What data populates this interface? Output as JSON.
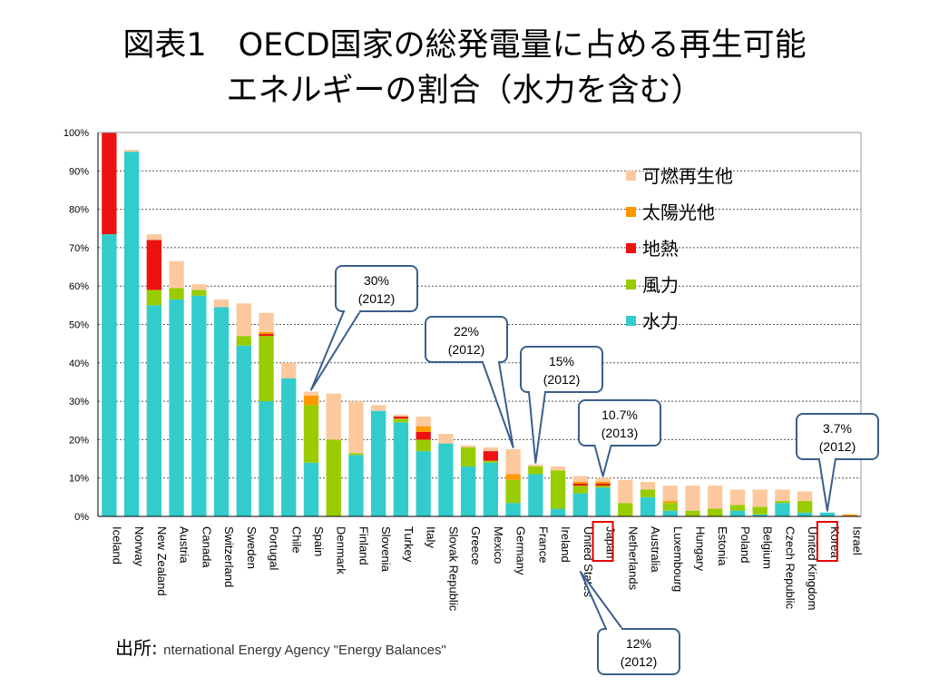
{
  "title_line1": "図表1　OECD国家の総発電量に占める再生可能",
  "title_line2": "エネルギーの割合（水力を含む）",
  "source_label": "出所:",
  "source_text": "nternational Energy Agency \"Energy Balances\"",
  "chart_data": {
    "type": "bar",
    "stacked": true,
    "ylim": [
      0,
      100
    ],
    "yticks": [
      "0%",
      "10%",
      "20%",
      "30%",
      "40%",
      "50%",
      "60%",
      "70%",
      "80%",
      "90%",
      "100%"
    ],
    "grid": true,
    "legend_position": "top-right",
    "categories": [
      "Iceland",
      "Norway",
      "New Zealand",
      "Austria",
      "Canada",
      "Switzerland",
      "Sweden",
      "Portugal",
      "Chile",
      "Spain",
      "Denmark",
      "Finland",
      "Slovenia",
      "Turkey",
      "Italy",
      "Slovak Republic",
      "Greece",
      "Mexico",
      "Germany",
      "France",
      "Ireland",
      "United States",
      "Japan",
      "Netherlands",
      "Australia",
      "Luxembourg",
      "Hungary",
      "Estonia",
      "Poland",
      "Belgium",
      "Czech Republic",
      "United Kingdom",
      "Korea",
      "Israel"
    ],
    "highlighted": [
      "Japan",
      "Korea"
    ],
    "series": [
      {
        "name": "水力",
        "color": "#33cccc",
        "values": [
          73.5,
          95,
          55,
          56.5,
          57.5,
          54.5,
          44.5,
          30,
          36,
          14,
          0,
          16,
          27.5,
          24.5,
          17,
          19,
          13,
          14,
          3.5,
          11,
          2,
          6,
          7.5,
          0,
          5,
          1.5,
          0,
          0,
          1.5,
          0.5,
          3.5,
          1,
          1,
          0
        ]
      },
      {
        "name": "風力",
        "color": "#99cc00",
        "values": [
          0,
          0,
          4,
          3,
          1.5,
          0,
          2.5,
          17,
          0,
          15,
          20,
          0.5,
          0,
          1,
          3,
          0,
          5,
          0.5,
          6,
          2,
          10,
          2,
          0.5,
          3.5,
          2,
          2,
          1.5,
          2,
          1.5,
          2,
          0.5,
          3,
          0,
          0
        ]
      },
      {
        "name": "地熱",
        "color": "#ee1111",
        "values": [
          26.5,
          0,
          13,
          0,
          0,
          0,
          0,
          0.5,
          0,
          0,
          0,
          0,
          0,
          0.5,
          2,
          0,
          0,
          2.5,
          0,
          0,
          0,
          0.5,
          0.5,
          0,
          0,
          0,
          0,
          0,
          0,
          0,
          0,
          0,
          0,
          0
        ]
      },
      {
        "name": "太陽光他",
        "color": "#ff9900",
        "values": [
          0,
          0,
          0,
          0,
          0,
          0,
          0,
          0.5,
          0,
          2.5,
          0,
          0,
          0,
          0,
          1.5,
          0,
          0,
          0,
          1.5,
          0,
          0,
          0.5,
          0.5,
          0,
          0,
          0.5,
          0,
          0,
          0,
          0,
          0,
          0,
          0,
          0.5
        ]
      },
      {
        "name": "可燃再生他",
        "color": "#fcc99e",
        "values": [
          0,
          0.5,
          1.5,
          7,
          1.5,
          2,
          8.5,
          5,
          4,
          1,
          12,
          13.5,
          1.5,
          0.5,
          2.5,
          2.5,
          0.5,
          1,
          6.5,
          0.5,
          1,
          1.5,
          1,
          6,
          2,
          4,
          6.5,
          6,
          4,
          4.5,
          3,
          2.5,
          0,
          0
        ]
      }
    ],
    "annotations": [
      {
        "text": [
          "30%",
          "(2012)"
        ],
        "target": "Spain"
      },
      {
        "text": [
          "22%",
          "(2012)"
        ],
        "target": "Germany"
      },
      {
        "text": [
          "15%",
          "(2012)"
        ],
        "target": "France"
      },
      {
        "text": [
          "10.7%",
          "(2013)"
        ],
        "target": "Japan"
      },
      {
        "text": [
          "3.7%",
          "(2012)"
        ],
        "target": "Korea"
      },
      {
        "text": [
          "12%",
          "(2012)"
        ],
        "target": "United States"
      }
    ]
  }
}
